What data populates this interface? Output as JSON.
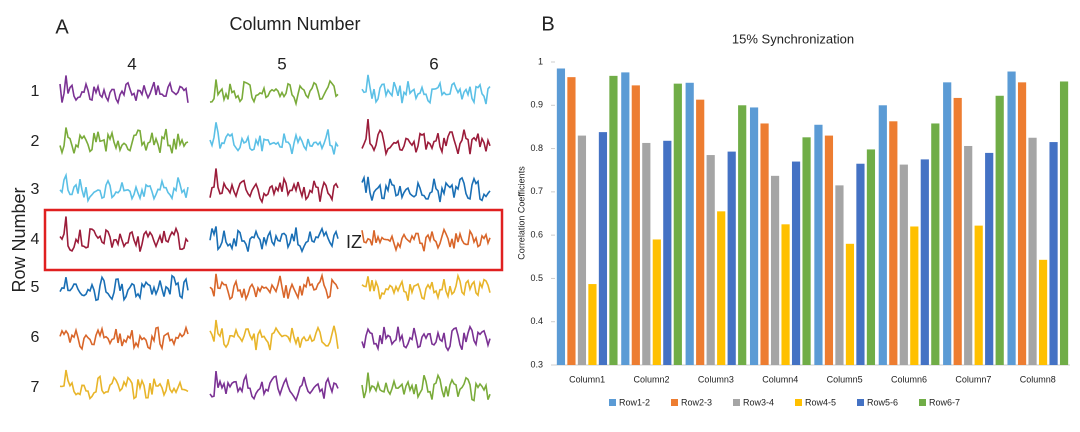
{
  "panel_a": {
    "label": "A",
    "title": "Column Number",
    "columns": [
      "4",
      "5",
      "6"
    ],
    "row_axis_label": "Row Number",
    "rows": [
      "1",
      "2",
      "3",
      "4",
      "5",
      "6",
      "7"
    ],
    "annotation": "IZ"
  },
  "chart_data": {
    "type": "bar",
    "label": "B",
    "title": "15% Synchronization",
    "y_label": "Correlation Coefficients",
    "categories": [
      "Column1",
      "Column2",
      "Column3",
      "Column4",
      "Column5",
      "Column6",
      "Column7",
      "Column8"
    ],
    "series": [
      {
        "name": "Row1-2",
        "color": "#5b9bd5",
        "values": [
          0.985,
          0.976,
          0.952,
          0.895,
          0.855,
          0.9,
          0.953,
          0.978
        ]
      },
      {
        "name": "Row2-3",
        "color": "#ed7d31",
        "values": [
          0.965,
          0.946,
          0.913,
          0.858,
          0.83,
          0.863,
          0.917,
          0.953
        ]
      },
      {
        "name": "Row3-4",
        "color": "#a5a5a5",
        "values": [
          0.83,
          0.813,
          0.785,
          0.737,
          0.715,
          0.763,
          0.806,
          0.825
        ]
      },
      {
        "name": "Row4-5",
        "color": "#ffc000",
        "values": [
          0.487,
          0.59,
          0.655,
          0.625,
          0.58,
          0.62,
          0.622,
          0.543
        ]
      },
      {
        "name": "Row5-6",
        "color": "#4472c4",
        "values": [
          0.838,
          0.818,
          0.793,
          0.77,
          0.765,
          0.775,
          0.79,
          0.815
        ]
      },
      {
        "name": "Row6-7",
        "color": "#70ad47",
        "values": [
          0.968,
          0.95,
          0.9,
          0.826,
          0.798,
          0.858,
          0.922,
          0.955
        ]
      }
    ],
    "ylim": [
      0.3,
      1
    ],
    "yticks": [
      0.3,
      0.4,
      0.5,
      0.6,
      0.7,
      0.8,
      0.9,
      1
    ],
    "legend": "bottom"
  }
}
